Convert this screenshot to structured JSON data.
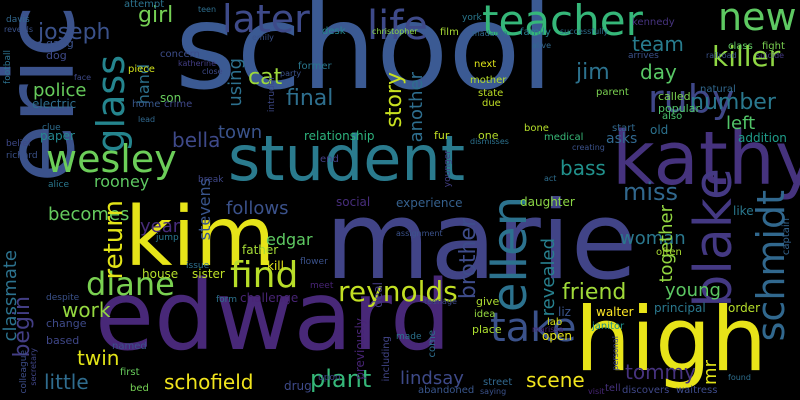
{
  "word_cloud": {
    "background": "#000000",
    "words": [
      {
        "text": "school",
        "color": "#3b5a93"
      },
      {
        "text": "marie",
        "color": "#414487"
      },
      {
        "text": "eric",
        "color": "#3b528b"
      },
      {
        "text": "edward",
        "color": "#482878"
      },
      {
        "text": "student",
        "color": "#2a7b8e"
      },
      {
        "text": "kim",
        "color": "#e6e419"
      },
      {
        "text": "high",
        "color": "#e8e419"
      },
      {
        "text": "kathy",
        "color": "#46337e"
      },
      {
        "text": "teacher",
        "color": "#35b779"
      },
      {
        "text": "life",
        "color": "#3e4a89"
      },
      {
        "text": "later",
        "color": "#3e4a89"
      },
      {
        "text": "new",
        "color": "#5ec962"
      },
      {
        "text": "killer",
        "color": "#8fd744"
      },
      {
        "text": "ruby",
        "color": "#3f4788"
      },
      {
        "text": "wesley",
        "color": "#6cce59"
      },
      {
        "text": "diane",
        "color": "#7ad151"
      },
      {
        "text": "find",
        "color": "#b8de29"
      },
      {
        "text": "blake",
        "color": "#443983"
      },
      {
        "text": "schmidt",
        "color": "#31688e"
      },
      {
        "text": "ellen",
        "color": "#2c728e"
      },
      {
        "text": "take",
        "color": "#3b528b"
      },
      {
        "text": "reynolds",
        "color": "#c2df23"
      },
      {
        "text": "glass",
        "color": "#25858e"
      },
      {
        "text": "joseph",
        "color": "#3b528b"
      },
      {
        "text": "girl",
        "color": "#75d054"
      },
      {
        "text": "cat",
        "color": "#9dd93b"
      },
      {
        "text": "using",
        "color": "#2d708e"
      },
      {
        "text": "final",
        "color": "#2e6f8e"
      },
      {
        "text": "jim",
        "color": "#2c728e"
      },
      {
        "text": "story",
        "color": "#c8e020"
      },
      {
        "text": "another",
        "color": "#2e6e8e"
      },
      {
        "text": "day",
        "color": "#58c765"
      },
      {
        "text": "team",
        "color": "#287c8e"
      },
      {
        "text": "number",
        "color": "#2a788e"
      },
      {
        "text": "police",
        "color": "#67cc5c"
      },
      {
        "text": "hand",
        "color": "#2d718e"
      },
      {
        "text": "bella",
        "color": "#3e4989"
      },
      {
        "text": "town",
        "color": "#3a538b"
      },
      {
        "text": "left",
        "color": "#52c569"
      },
      {
        "text": "bass",
        "color": "#21918c"
      },
      {
        "text": "miss",
        "color": "#31688e"
      },
      {
        "text": "rooney",
        "color": "#5ec962"
      },
      {
        "text": "begin",
        "color": "#433e85"
      },
      {
        "text": "becomes",
        "color": "#65cb5e"
      },
      {
        "text": "return",
        "color": "#e2e418"
      },
      {
        "text": "year",
        "color": "#472c7a"
      },
      {
        "text": "stevens",
        "color": "#39558c"
      },
      {
        "text": "follows",
        "color": "#3b528b"
      },
      {
        "text": "edgar",
        "color": "#5ec962"
      },
      {
        "text": "brother",
        "color": "#3e4c8a"
      },
      {
        "text": "revealed",
        "color": "#27808e"
      },
      {
        "text": "woman",
        "color": "#2a788e"
      },
      {
        "text": "together",
        "color": "#93d741"
      },
      {
        "text": "friend",
        "color": "#a0da39"
      },
      {
        "text": "young",
        "color": "#5cc863"
      },
      {
        "text": "classmate",
        "color": "#2c728e"
      },
      {
        "text": "work",
        "color": "#95d840"
      },
      {
        "text": "twin",
        "color": "#e2e418"
      },
      {
        "text": "little",
        "color": "#2f6c8e"
      },
      {
        "text": "schofield",
        "color": "#f1e51d"
      },
      {
        "text": "plant",
        "color": "#35b779"
      },
      {
        "text": "lindsay",
        "color": "#3e4a89"
      },
      {
        "text": "scene",
        "color": "#f1e51d"
      },
      {
        "text": "tommy",
        "color": "#46327e"
      },
      {
        "text": "mr",
        "color": "#e2e418"
      },
      {
        "text": "like",
        "color": "#2a788e"
      },
      {
        "text": "relationship",
        "color": "#2db27d"
      },
      {
        "text": "experience",
        "color": "#35608d"
      },
      {
        "text": "social",
        "color": "#472d7b"
      },
      {
        "text": "daughter",
        "color": "#8bd646"
      },
      {
        "text": "son",
        "color": "#67cc5c"
      },
      {
        "text": "crime",
        "color": "#3f4889"
      },
      {
        "text": "house",
        "color": "#b5de2b"
      },
      {
        "text": "sister",
        "color": "#bddf26"
      },
      {
        "text": "father",
        "color": "#a5db36"
      },
      {
        "text": "kill",
        "color": "#e5e419"
      },
      {
        "text": "home",
        "color": "#38588c"
      },
      {
        "text": "paper",
        "color": "#24878e"
      },
      {
        "text": "electric",
        "color": "#2e6e8e"
      },
      {
        "text": "gang",
        "color": "#3b528b"
      },
      {
        "text": "dog",
        "color": "#3e4a89"
      },
      {
        "text": "christopher",
        "color": "#8bd646"
      },
      {
        "text": "film",
        "color": "#a8db34"
      },
      {
        "text": "family",
        "color": "#287d8e"
      },
      {
        "text": "kennedy",
        "color": "#46337e"
      },
      {
        "text": "class",
        "color": "#5ec962"
      },
      {
        "text": "fight",
        "color": "#7ad151"
      },
      {
        "text": "mother",
        "color": "#b5de2b"
      },
      {
        "text": "state",
        "color": "#bddf26"
      },
      {
        "text": "due",
        "color": "#c0df25"
      },
      {
        "text": "parent",
        "color": "#7ad151"
      },
      {
        "text": "called",
        "color": "#7ad151"
      },
      {
        "text": "popular",
        "color": "#50c46a"
      },
      {
        "text": "natural",
        "color": "#31688e"
      },
      {
        "text": "desk",
        "color": "#25858e"
      },
      {
        "text": "former",
        "color": "#2a788e"
      },
      {
        "text": "concern",
        "color": "#3d4d8a"
      },
      {
        "text": "piece",
        "color": "#d2e21b"
      },
      {
        "text": "attempt",
        "color": "#2c738e"
      },
      {
        "text": "end",
        "color": "#433e85"
      },
      {
        "text": "next",
        "color": "#dde318"
      },
      {
        "text": "fur",
        "color": "#c2df23"
      },
      {
        "text": "one",
        "color": "#b5de2b"
      },
      {
        "text": "bone",
        "color": "#b5de2b"
      },
      {
        "text": "medical",
        "color": "#37b878"
      },
      {
        "text": "start",
        "color": "#31688e"
      },
      {
        "text": "also",
        "color": "#4ac16d"
      },
      {
        "text": "addition",
        "color": "#1e9c89"
      },
      {
        "text": "asks",
        "color": "#31688e"
      },
      {
        "text": "old",
        "color": "#2c728e"
      },
      {
        "text": "give",
        "color": "#addc30"
      },
      {
        "text": "idea",
        "color": "#95d840"
      },
      {
        "text": "place",
        "color": "#ade02f"
      },
      {
        "text": "open",
        "color": "#e5e419"
      },
      {
        "text": "lab",
        "color": "#d8e219"
      },
      {
        "text": "liz",
        "color": "#3a548c"
      },
      {
        "text": "walter",
        "color": "#fde725"
      },
      {
        "text": "principal",
        "color": "#2a788e"
      },
      {
        "text": "order",
        "color": "#b5de2b"
      },
      {
        "text": "janitor",
        "color": "#21918c"
      },
      {
        "text": "captain",
        "color": "#33638d"
      },
      {
        "text": "often",
        "color": "#aadc32"
      },
      {
        "text": "deal",
        "color": "#443a83"
      },
      {
        "text": "abandoned",
        "color": "#39568c"
      },
      {
        "text": "including",
        "color": "#414487"
      },
      {
        "text": "previously",
        "color": "#482475"
      },
      {
        "text": "drug",
        "color": "#3e4a89"
      },
      {
        "text": "named",
        "color": "#3b528b"
      },
      {
        "text": "based",
        "color": "#3f4788"
      },
      {
        "text": "change",
        "color": "#3e4a89"
      },
      {
        "text": "first",
        "color": "#67cc5c"
      },
      {
        "text": "bed",
        "color": "#75d054"
      },
      {
        "text": "discovers",
        "color": "#3f4788"
      },
      {
        "text": "waitress",
        "color": "#3e4c8a"
      },
      {
        "text": "tell",
        "color": "#46327e"
      },
      {
        "text": "street",
        "color": "#31688e"
      },
      {
        "text": "visit",
        "color": "#482677"
      },
      {
        "text": "alice",
        "color": "#2a788e"
      },
      {
        "text": "clue",
        "color": "#2e6d8e"
      },
      {
        "text": "richard",
        "color": "#3b528b"
      },
      {
        "text": "belief",
        "color": "#3e4989"
      },
      {
        "text": "colleague",
        "color": "#3d4e8a"
      },
      {
        "text": "secretary",
        "color": "#404688"
      },
      {
        "text": "despite",
        "color": "#3b528b"
      },
      {
        "text": "jump",
        "color": "#2a788e"
      },
      {
        "text": "break",
        "color": "#3f4788"
      },
      {
        "text": "issue",
        "color": "#2e6f8e"
      },
      {
        "text": "challenge",
        "color": "#482475"
      },
      {
        "text": "form",
        "color": "#2c728e"
      },
      {
        "text": "meet",
        "color": "#482475"
      },
      {
        "text": "flower",
        "color": "#3b528b"
      },
      {
        "text": "upon",
        "color": "#3f4788"
      },
      {
        "text": "made",
        "color": "#2c728e"
      },
      {
        "text": "come",
        "color": "#2e6e8e"
      },
      {
        "text": "teenage",
        "color": "#3e4a89"
      },
      {
        "text": "york",
        "color": "#2a788e"
      },
      {
        "text": "teen",
        "color": "#2e6e8e"
      },
      {
        "text": "davis",
        "color": "#31688e"
      },
      {
        "text": "football",
        "color": "#2c728e"
      },
      {
        "text": "reveals",
        "color": "#3b528b"
      },
      {
        "text": "close",
        "color": "#3e4a89"
      },
      {
        "text": "party",
        "color": "#3b528b"
      },
      {
        "text": "katherine",
        "color": "#433e85"
      },
      {
        "text": "emily",
        "color": "#3b528b"
      },
      {
        "text": "madame",
        "color": "#31688e"
      },
      {
        "text": "alive",
        "color": "#31688e"
      },
      {
        "text": "arrives",
        "color": "#3b528b"
      },
      {
        "text": "successfully",
        "color": "#2e6e8e"
      },
      {
        "text": "railroad",
        "color": "#3b528b"
      },
      {
        "text": "suicide",
        "color": "#443983"
      },
      {
        "text": "face",
        "color": "#3e4a89"
      },
      {
        "text": "lead",
        "color": "#31688e"
      },
      {
        "text": "dismisses",
        "color": "#2c728e"
      },
      {
        "text": "creating",
        "color": "#3b528b"
      },
      {
        "text": "act",
        "color": "#2e6e8e"
      },
      {
        "text": "personal",
        "color": "#3f4788"
      },
      {
        "text": "saying",
        "color": "#3b528b"
      },
      {
        "text": "found",
        "color": "#2e6e8e"
      },
      {
        "text": "intruder",
        "color": "#3e4a89"
      },
      {
        "text": "younger",
        "color": "#433e85"
      },
      {
        "text": "assignment",
        "color": "#3b528b"
      },
      {
        "text": "marissa",
        "color": "#482475"
      }
    ]
  }
}
